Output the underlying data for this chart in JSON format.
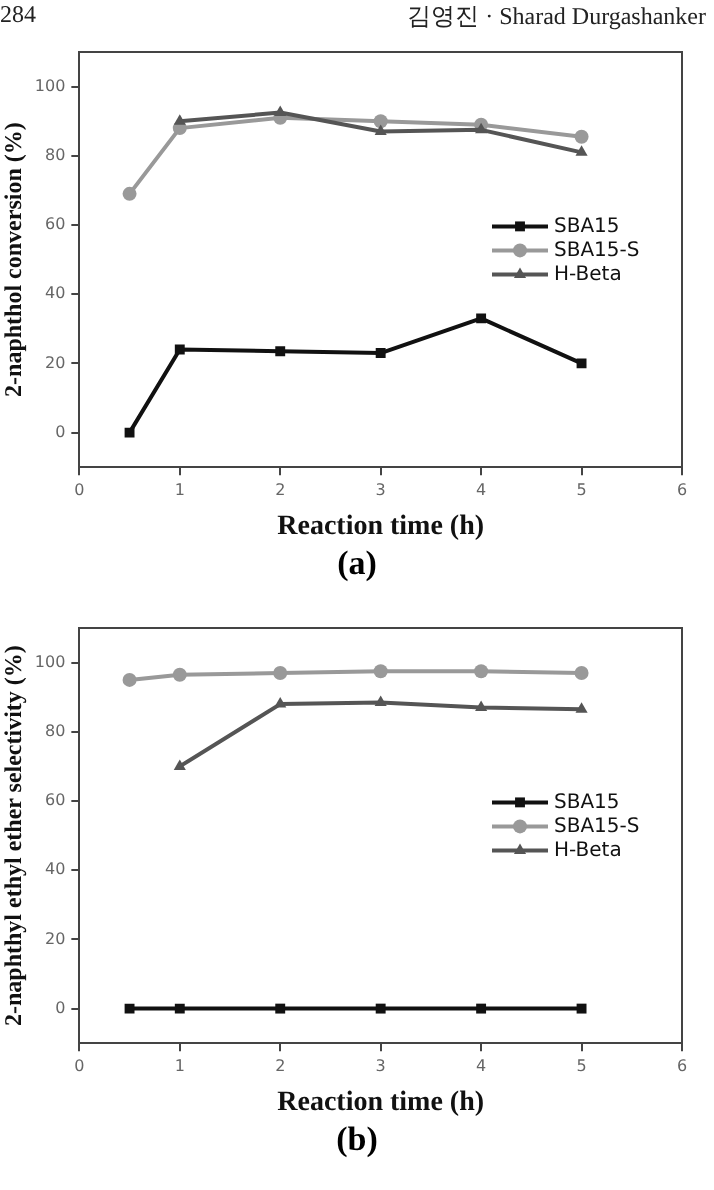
{
  "chart_data": [
    {
      "type": "line",
      "title": "(a)",
      "xlabel": "Reaction time (h)",
      "ylabel": "2-naphthol conversion (%)",
      "annotations": [
        "284",
        "김영진 · Sharad Durgashanker"
      ],
      "xlim": [
        0,
        6
      ],
      "xticks": [
        0,
        1,
        2,
        3,
        4,
        5,
        6
      ],
      "ylim": [
        -10,
        110
      ],
      "yticks": [
        0,
        20,
        40,
        60,
        80,
        100
      ],
      "grid": false,
      "legend": "right",
      "line_style": "solid",
      "series": [
        {
          "name": "SBA15",
          "color": "#111111",
          "marker": "square",
          "x": [
            0.5,
            1,
            2,
            3,
            4,
            5
          ],
          "values": [
            0,
            24,
            23.5,
            23,
            33,
            20
          ]
        },
        {
          "name": "SBA15-S",
          "color": "#999999",
          "marker": "circle",
          "x": [
            0.5,
            1,
            2,
            3,
            4,
            5
          ],
          "values": [
            69,
            88,
            91,
            90,
            89,
            85.5
          ]
        },
        {
          "name": "H-Beta",
          "color": "#555555",
          "marker": "triangle",
          "x": [
            1,
            2,
            3,
            4,
            5
          ],
          "values": [
            90,
            92.5,
            87,
            87.5,
            81
          ]
        }
      ]
    },
    {
      "type": "line",
      "title": "(b)",
      "xlabel": "Reaction time (h)",
      "ylabel": "2-naphthyl ethyl ether selectivity (%)",
      "xlim": [
        0,
        6
      ],
      "xticks": [
        0,
        1,
        2,
        3,
        4,
        5,
        6
      ],
      "ylim": [
        -10,
        110
      ],
      "yticks": [
        0,
        20,
        40,
        60,
        80,
        100
      ],
      "grid": false,
      "legend": "right",
      "line_style": "solid",
      "series": [
        {
          "name": "SBA15",
          "color": "#111111",
          "marker": "square",
          "x": [
            0.5,
            1,
            2,
            3,
            4,
            5
          ],
          "values": [
            0,
            0,
            0,
            0,
            0,
            0
          ]
        },
        {
          "name": "SBA15-S",
          "color": "#999999",
          "marker": "circle",
          "x": [
            0.5,
            1,
            2,
            3,
            4,
            5
          ],
          "values": [
            95,
            96.5,
            97,
            97.5,
            97.5,
            97
          ]
        },
        {
          "name": "H-Beta",
          "color": "#555555",
          "marker": "triangle",
          "x": [
            1,
            2,
            3,
            4,
            5
          ],
          "values": [
            70,
            88,
            88.5,
            87,
            86.5
          ]
        }
      ]
    }
  ]
}
